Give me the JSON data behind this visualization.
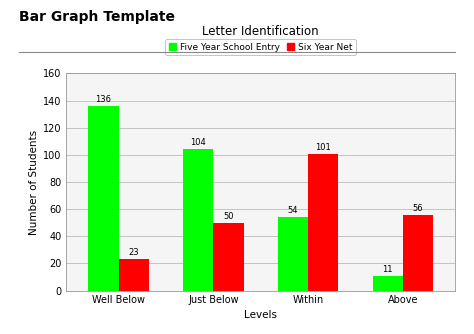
{
  "title": "Letter Identification",
  "outer_title": "Bar Graph Template",
  "xlabel": "Levels",
  "ylabel": "Number of Students",
  "categories": [
    "Well Below",
    "Just Below",
    "Within",
    "Above"
  ],
  "series1_label": "Five Year School Entry",
  "series2_label": "Six Year Net",
  "series1_values": [
    136,
    104,
    54,
    11
  ],
  "series2_values": [
    23,
    50,
    101,
    56
  ],
  "series1_color": "#00FF00",
  "series2_color": "#FF0000",
  "ylim": [
    0,
    160
  ],
  "yticks": [
    0,
    20,
    40,
    60,
    80,
    100,
    120,
    140,
    160
  ],
  "bar_width": 0.32,
  "chart_bg": "#F5F5F5",
  "outer_bg": "#FFFFFF",
  "grid_color": "#BBBBBB",
  "title_fontsize": 8.5,
  "outer_title_fontsize": 10,
  "axis_label_fontsize": 7.5,
  "tick_fontsize": 7,
  "legend_fontsize": 6.5,
  "value_label_fontsize": 6
}
